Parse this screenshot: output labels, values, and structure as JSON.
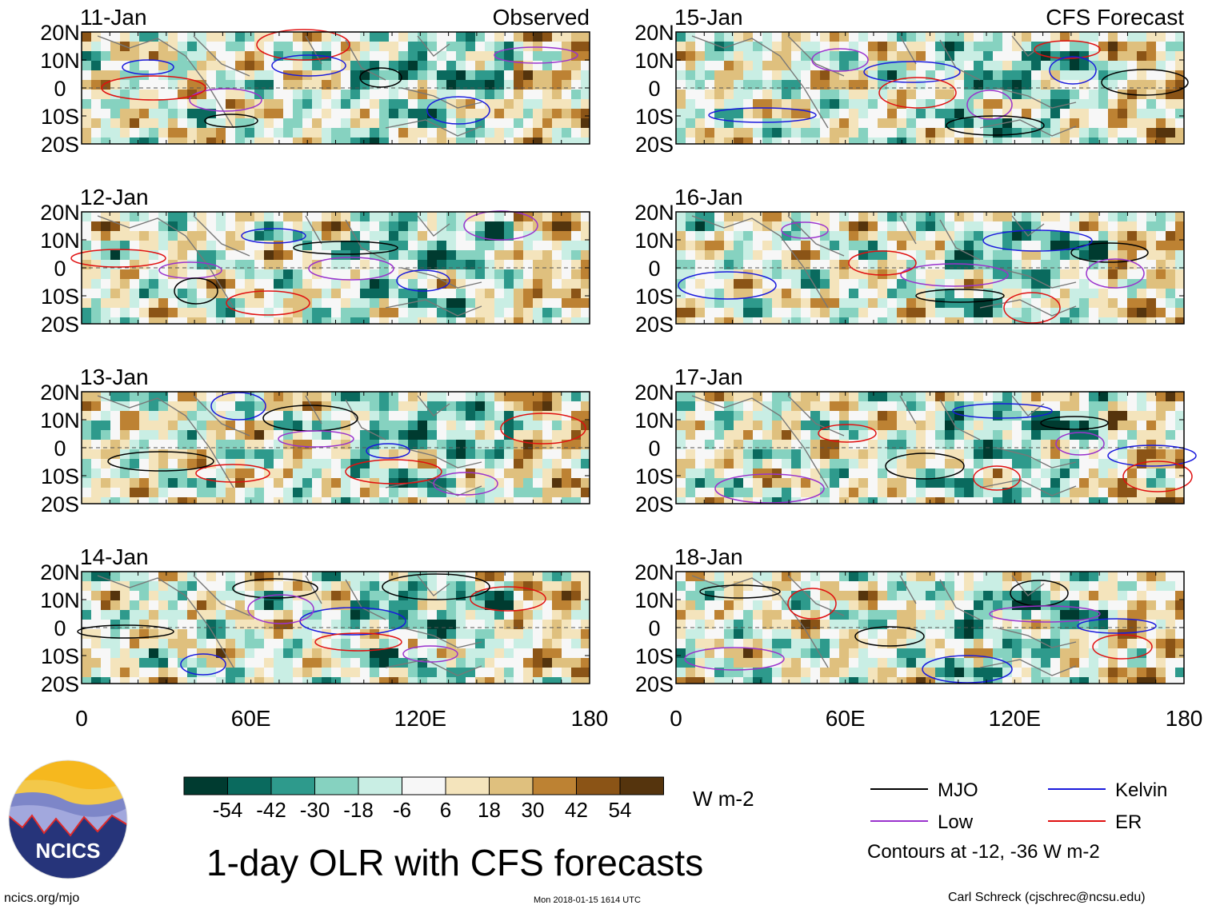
{
  "chart_data": {
    "type": "heatmap",
    "title": "1-day OLR with CFS forecasts",
    "units": "W m-2",
    "x_tick_labels": [
      "0",
      "60E",
      "120E",
      "180"
    ],
    "y_tick_labels": [
      "20N",
      "10N",
      "0",
      "10S",
      "20S"
    ],
    "xlim": [
      0,
      180
    ],
    "ylim": [
      -20,
      20
    ],
    "columns": [
      {
        "label": "Observed",
        "dates": [
          "11-Jan",
          "12-Jan",
          "13-Jan",
          "14-Jan"
        ]
      },
      {
        "label": "CFS Forecast",
        "dates": [
          "15-Jan",
          "16-Jan",
          "17-Jan",
          "18-Jan"
        ]
      }
    ],
    "colorbar": {
      "labels": [
        "-54",
        "-42",
        "-30",
        "-18",
        "-6",
        "6",
        "18",
        "30",
        "42",
        "54"
      ],
      "colors": [
        "#003b30",
        "#0a6a5e",
        "#2e9a8c",
        "#86d2c0",
        "#c9eee4",
        "#f7f7f7",
        "#f4e4bc",
        "#dfc07e",
        "#bd8233",
        "#8b5416",
        "#55340d"
      ]
    },
    "legend": [
      {
        "name": "MJO",
        "color": "#000000"
      },
      {
        "name": "Kelvin",
        "color": "#1a1adc"
      },
      {
        "name": "Low",
        "color": "#9a32cd"
      },
      {
        "name": "ER",
        "color": "#e01010"
      }
    ],
    "contour_note": "Contours at -12, -36 W m-2"
  },
  "footer": {
    "logo_text": "NCICS",
    "url": "ncics.org/mjo",
    "timestamp": "Mon 2018-01-15 1614 UTC",
    "credit": "Carl Schreck (cjschrec@ncsu.edu)"
  }
}
